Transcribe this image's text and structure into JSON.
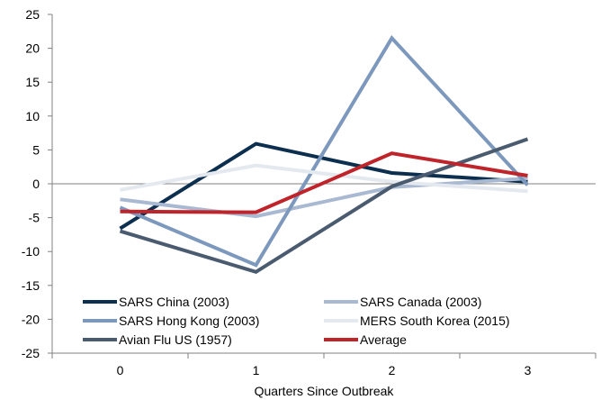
{
  "chart_data": {
    "type": "line",
    "title": "",
    "xlabel": "Quarters Since Outbreak",
    "ylabel": "",
    "x": [
      0,
      1,
      2,
      3
    ],
    "x_tick_labels": [
      "0",
      "1",
      "2",
      "3"
    ],
    "y_ticks": [
      -25,
      -20,
      -15,
      -10,
      -5,
      0,
      5,
      10,
      15,
      20,
      25
    ],
    "ylim": [
      -25,
      25
    ],
    "grid": false,
    "legend_position": "bottom-left inside",
    "series": [
      {
        "name": "SARS China (2003)",
        "color": "#0d2f4f",
        "values": [
          -6.6,
          5.9,
          1.6,
          0.3
        ]
      },
      {
        "name": "SARS Canada (2003)",
        "color": "#a9b9d1",
        "values": [
          -2.3,
          -4.8,
          -0.5,
          0.8
        ]
      },
      {
        "name": "SARS Hong Kong (2003)",
        "color": "#7d98bd",
        "values": [
          -3.5,
          -12.0,
          21.5,
          -0.2
        ]
      },
      {
        "name": "MERS South Korea (2015)",
        "color": "#e4e8ef",
        "values": [
          -0.9,
          2.7,
          0.3,
          -1.1
        ]
      },
      {
        "name": "Avian Flu US (1957)",
        "color": "#4a5b70",
        "values": [
          -7.0,
          -13.0,
          -0.4,
          6.6
        ]
      },
      {
        "name": "Average",
        "color": "#c0242b",
        "values": [
          -4.1,
          -4.2,
          4.5,
          1.2
        ]
      }
    ]
  }
}
